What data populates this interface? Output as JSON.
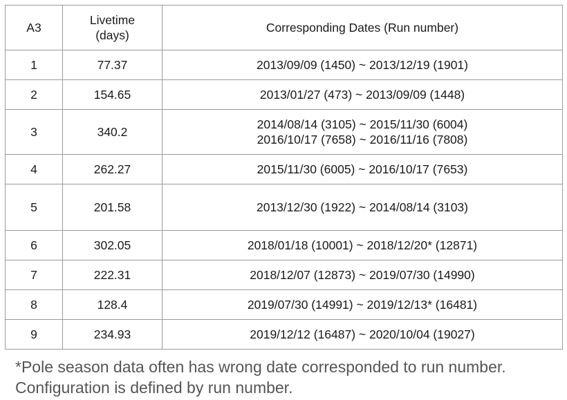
{
  "table": {
    "headers": {
      "config": "A3",
      "livetime_line1": "Livetime",
      "livetime_line2": "(days)",
      "dates": "Corresponding Dates (Run number)"
    },
    "rows": [
      {
        "config": "1",
        "livetime": "77.37",
        "dates": [
          "2013/09/09 (1450) ~ 2013/12/19 (1901)"
        ]
      },
      {
        "config": "2",
        "livetime": "154.65",
        "dates": [
          "2013/01/27 (473) ~ 2013/09/09 (1448)"
        ]
      },
      {
        "config": "3",
        "livetime": "340.2",
        "dates": [
          "2014/08/14 (3105) ~ 2015/11/30 (6004)",
          "2016/10/17 (7658) ~ 2016/11/16 (7808)"
        ]
      },
      {
        "config": "4",
        "livetime": "262.27",
        "dates": [
          "2015/11/30 (6005) ~ 2016/10/17 (7653)"
        ]
      },
      {
        "config": "5",
        "livetime": "201.58",
        "dates": [
          "2013/12/30 (1922) ~ 2014/08/14 (3103)"
        ]
      },
      {
        "config": "6",
        "livetime": "302.05",
        "dates": [
          "2018/01/18 (10001) ~ 2018/12/20* (12871)"
        ]
      },
      {
        "config": "7",
        "livetime": "222.31",
        "dates": [
          "2018/12/07 (12873) ~ 2019/07/30 (14990)"
        ]
      },
      {
        "config": "8",
        "livetime": "128.4",
        "dates": [
          "2019/07/30 (14991) ~ 2019/12/13* (16481)"
        ]
      },
      {
        "config": "9",
        "livetime": "234.93",
        "dates": [
          "2019/12/12 (16487) ~ 2020/10/04 (19027)"
        ]
      }
    ]
  },
  "footnote": {
    "line1": "*Pole season data often has wrong date corresponded to run number.",
    "line2": "Configuration is defined by run number."
  }
}
